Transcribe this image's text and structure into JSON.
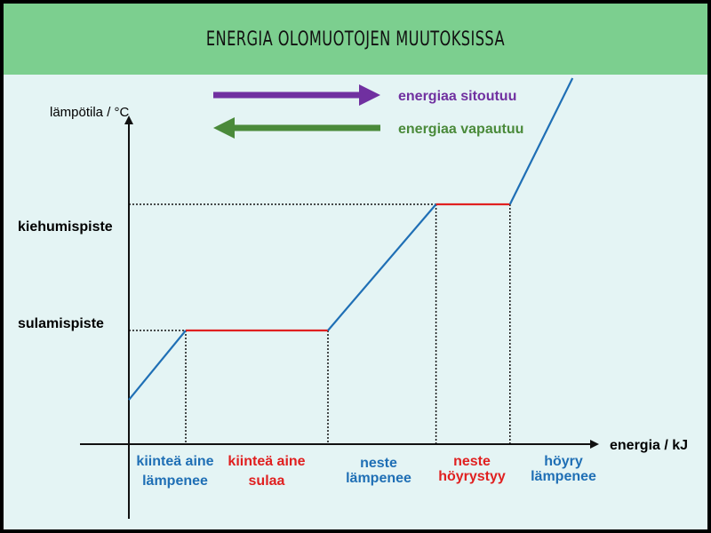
{
  "header": {
    "title": "ENERGIA OLOMUOTOJEN MUUTOKSISSA"
  },
  "legend": {
    "absorb_label": "energiaa sitoutuu",
    "release_label": "energiaa vapautuu"
  },
  "colors": {
    "header_bg": "#7ccf8f",
    "background": "#e4f4f4",
    "absorb": "#7030a0",
    "release": "#4a8a3a",
    "heating_segment": "#1f6fb5",
    "phase_change_segment": "#e02020",
    "axis": "#111111"
  },
  "chart_data": {
    "type": "line",
    "xlabel": "energia / kJ",
    "ylabel": "lämpötila / °C",
    "yticks": [
      "sulamispiste",
      "kiehumispiste"
    ],
    "phases": [
      {
        "lines": [
          "kiinteä aine",
          "lämpenee"
        ],
        "kind": "heating"
      },
      {
        "lines": [
          "kiinteä aine",
          "sulaa"
        ],
        "kind": "phase_change"
      },
      {
        "lines": [
          "neste",
          "lämpenee"
        ],
        "kind": "heating"
      },
      {
        "lines": [
          "neste",
          "höyrystyy"
        ],
        "kind": "phase_change"
      },
      {
        "lines": [
          "höyry",
          "lämpenee"
        ],
        "kind": "heating"
      }
    ],
    "x": [
      0,
      1,
      3.5,
      5.4,
      6.7,
      7.8
    ],
    "y": [
      0.45,
      1,
      1,
      2,
      2,
      3
    ]
  }
}
